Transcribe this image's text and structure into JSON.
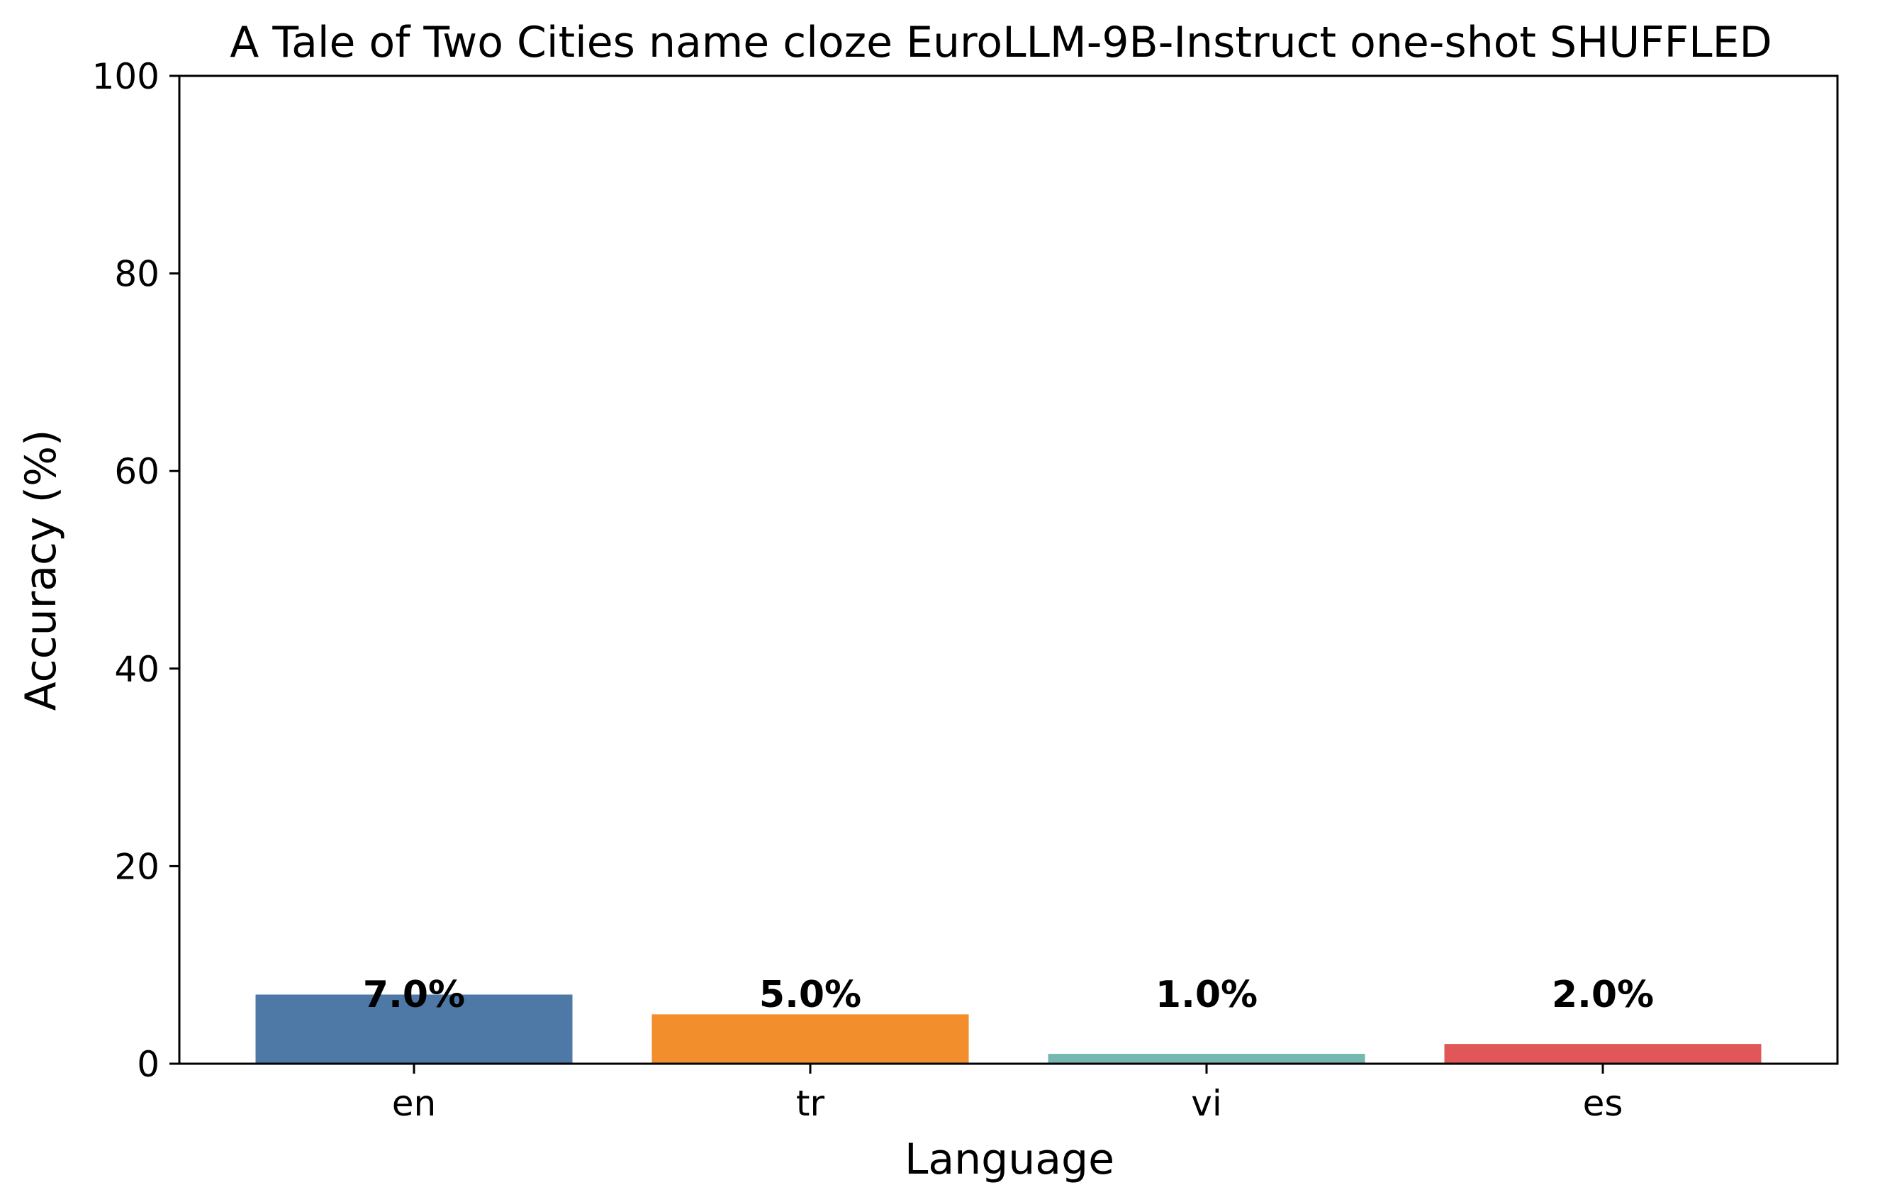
{
  "chart_data": {
    "type": "bar",
    "title": "A Tale of Two Cities name cloze EuroLLM-9B-Instruct one-shot SHUFFLED",
    "xlabel": "Language",
    "ylabel": "Accuracy (%)",
    "categories": [
      "en",
      "tr",
      "vi",
      "es"
    ],
    "values": [
      7.0,
      5.0,
      1.0,
      2.0
    ],
    "value_labels": [
      "7.0%",
      "5.0%",
      "1.0%",
      "2.0%"
    ],
    "colors": [
      "#4e79a7",
      "#f28e2b",
      "#76b7b2",
      "#e15759"
    ],
    "ylim": [
      0,
      100
    ],
    "yticks": [
      0,
      20,
      40,
      60,
      80,
      100
    ],
    "ytick_labels": [
      "0",
      "20",
      "40",
      "60",
      "80",
      "100"
    ],
    "grid": false,
    "legend": "none"
  }
}
